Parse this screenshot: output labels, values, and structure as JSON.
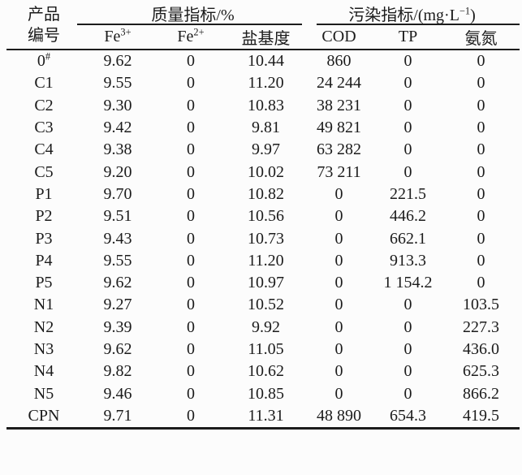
{
  "page": {
    "background_color": "#fcfcfc",
    "text_color": "#1b1b1b",
    "rule_color": "#1c1c1c"
  },
  "table": {
    "header": {
      "product_col": {
        "line1": "产品",
        "line2": "编号"
      },
      "groups": [
        {
          "label": "质量指标/%"
        },
        {
          "label_prefix": "污染指标/(mg·L",
          "label_sup": "−1",
          "label_suffix": ")"
        }
      ],
      "sub_columns": [
        {
          "base": "Fe",
          "sup": "3+"
        },
        {
          "base": "Fe",
          "sup": "2+"
        },
        {
          "base": "盐基度",
          "sup": ""
        },
        {
          "base": "COD",
          "sup": ""
        },
        {
          "base": "TP",
          "sup": ""
        },
        {
          "base": "氨氮",
          "sup": ""
        }
      ]
    },
    "rows": [
      {
        "id": "0",
        "id_sup": "#",
        "values": [
          "9.62",
          "0",
          "10.44",
          "860",
          "0",
          "0"
        ]
      },
      {
        "id": "C1",
        "id_sup": "",
        "values": [
          "9.55",
          "0",
          "11.20",
          "24 244",
          "0",
          "0"
        ]
      },
      {
        "id": "C2",
        "id_sup": "",
        "values": [
          "9.30",
          "0",
          "10.83",
          "38 231",
          "0",
          "0"
        ]
      },
      {
        "id": "C3",
        "id_sup": "",
        "values": [
          "9.42",
          "0",
          "9.81",
          "49 821",
          "0",
          "0"
        ]
      },
      {
        "id": "C4",
        "id_sup": "",
        "values": [
          "9.38",
          "0",
          "9.97",
          "63 282",
          "0",
          "0"
        ]
      },
      {
        "id": "C5",
        "id_sup": "",
        "values": [
          "9.20",
          "0",
          "10.02",
          "73 211",
          "0",
          "0"
        ]
      },
      {
        "id": "P1",
        "id_sup": "",
        "values": [
          "9.70",
          "0",
          "10.82",
          "0",
          "221.5",
          "0"
        ]
      },
      {
        "id": "P2",
        "id_sup": "",
        "values": [
          "9.51",
          "0",
          "10.56",
          "0",
          "446.2",
          "0"
        ]
      },
      {
        "id": "P3",
        "id_sup": "",
        "values": [
          "9.43",
          "0",
          "10.73",
          "0",
          "662.1",
          "0"
        ]
      },
      {
        "id": "P4",
        "id_sup": "",
        "values": [
          "9.55",
          "0",
          "11.20",
          "0",
          "913.3",
          "0"
        ]
      },
      {
        "id": "P5",
        "id_sup": "",
        "values": [
          "9.62",
          "0",
          "10.97",
          "0",
          "1 154.2",
          "0"
        ]
      },
      {
        "id": "N1",
        "id_sup": "",
        "values": [
          "9.27",
          "0",
          "10.52",
          "0",
          "0",
          "103.5"
        ]
      },
      {
        "id": "N2",
        "id_sup": "",
        "values": [
          "9.39",
          "0",
          "9.92",
          "0",
          "0",
          "227.3"
        ]
      },
      {
        "id": "N3",
        "id_sup": "",
        "values": [
          "9.62",
          "0",
          "11.05",
          "0",
          "0",
          "436.0"
        ]
      },
      {
        "id": "N4",
        "id_sup": "",
        "values": [
          "9.82",
          "0",
          "10.62",
          "0",
          "0",
          "625.3"
        ]
      },
      {
        "id": "N5",
        "id_sup": "",
        "values": [
          "9.46",
          "0",
          "10.85",
          "0",
          "0",
          "866.2"
        ]
      },
      {
        "id": "CPN",
        "id_sup": "",
        "values": [
          "9.71",
          "0",
          "11.31",
          "48 890",
          "654.3",
          "419.5"
        ]
      }
    ]
  }
}
